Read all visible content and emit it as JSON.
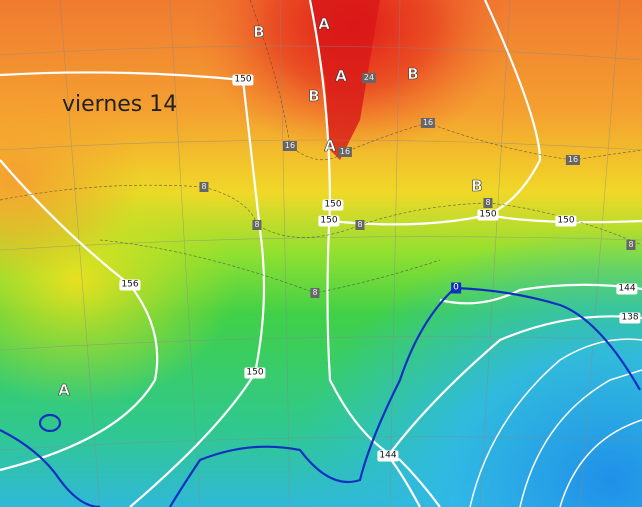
{
  "title": "viernes 14",
  "height_labels": [
    "150",
    "150",
    "150",
    "150",
    "150",
    "156",
    "150",
    "144",
    "138",
    "144"
  ],
  "zero_label": "0",
  "temp_labels": [
    "24",
    "16",
    "16",
    "16",
    "16",
    "8",
    "8",
    "8",
    "8",
    "8",
    "8"
  ],
  "pressure_centers": [
    "B",
    "A",
    "A",
    "B",
    "B",
    "A",
    "B",
    "A"
  ],
  "colors": {
    "hot": "#e02020",
    "warm": "#f08030",
    "mild": "#f0d020",
    "cool": "#40d040",
    "cold": "#30b8e0",
    "zero_isotherm": "#1030c0",
    "height_contour": "#ffffff"
  }
}
